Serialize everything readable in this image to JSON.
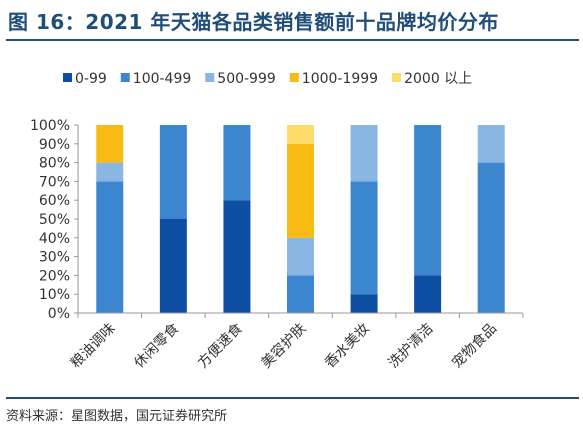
{
  "header": {
    "title": "图 16：2021 年天猫各品类销售额前十品牌均价分布"
  },
  "footer": {
    "source": "资料来源：星图数据，国元证券研究所"
  },
  "chart_data": {
    "type": "bar",
    "stacked": true,
    "percent": true,
    "title": "",
    "xlabel": "",
    "ylabel": "",
    "ylim": [
      0,
      100
    ],
    "yticks": [
      "0%",
      "10%",
      "20%",
      "30%",
      "40%",
      "50%",
      "60%",
      "70%",
      "80%",
      "90%",
      "100%"
    ],
    "grid": false,
    "legend_position": "top",
    "categories": [
      "粮油调味",
      "休闲零食",
      "方便速食",
      "美容护肤",
      "香水美妆",
      "洗护清洁",
      "宠物食品"
    ],
    "series": [
      {
        "name": "0-99",
        "color": "#0b4ea2",
        "values": [
          0,
          50,
          60,
          0,
          10,
          20,
          0
        ]
      },
      {
        "name": "100-499",
        "color": "#3c86d0",
        "values": [
          70,
          50,
          40,
          20,
          60,
          80,
          80
        ]
      },
      {
        "name": "500-999",
        "color": "#8ab6e3",
        "values": [
          10,
          0,
          0,
          20,
          30,
          0,
          20
        ]
      },
      {
        "name": "1000-1999",
        "color": "#f7bb13",
        "values": [
          20,
          0,
          0,
          50,
          0,
          0,
          0
        ]
      },
      {
        "name": "2000 以上",
        "color": "#fddc6a",
        "values": [
          0,
          0,
          0,
          10,
          0,
          0,
          0
        ]
      }
    ]
  }
}
